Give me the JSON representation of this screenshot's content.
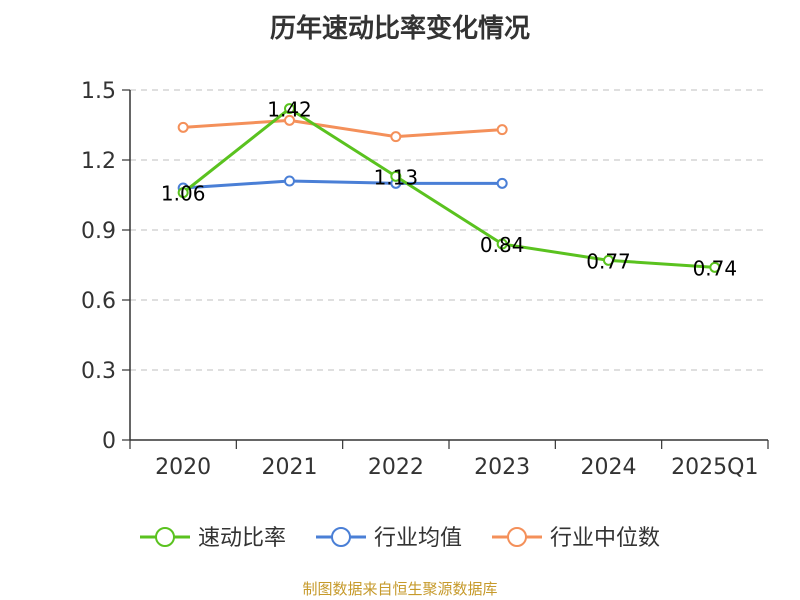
{
  "chart_data": {
    "type": "line",
    "title": "历年速动比率变化情况",
    "xlabel": "",
    "ylabel": "",
    "categories": [
      "2020",
      "2021",
      "2022",
      "2023",
      "2024",
      "2025Q1"
    ],
    "yticks": [
      "0",
      "0.3",
      "0.6",
      "0.9",
      "1.2",
      "1.5"
    ],
    "ylim": [
      0,
      1.5
    ],
    "grid": true,
    "legend_position": "bottom",
    "series": [
      {
        "name": "速动比率",
        "color": "#5ac21f",
        "values": [
          1.06,
          1.42,
          1.13,
          0.84,
          0.77,
          0.74
        ],
        "labels": [
          "1.06",
          "1.42",
          "1.13",
          "0.84",
          "0.77",
          "0.74"
        ]
      },
      {
        "name": "行业均值",
        "color": "#4a7fd6",
        "values": [
          1.08,
          1.11,
          1.1,
          1.1,
          null,
          null
        ]
      },
      {
        "name": "行业中位数",
        "color": "#f4905a",
        "values": [
          1.34,
          1.37,
          1.3,
          1.33,
          null,
          null
        ]
      }
    ]
  },
  "source_note": "制图数据来自恒生聚源数据库",
  "colors": {
    "title": "#333333",
    "grid": "#cccccc",
    "axis": "#333333",
    "source_note": "#c69a2b"
  }
}
